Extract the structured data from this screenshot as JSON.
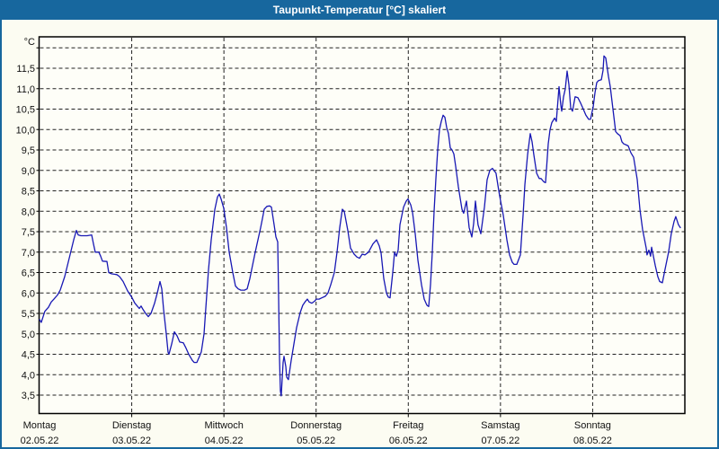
{
  "window": {
    "title": "Taupunkt-Temperatur [°C] skaliert"
  },
  "chart_data": {
    "type": "line",
    "title": "Taupunkt-Temperatur [°C] skaliert",
    "xlabel": "",
    "ylabel": "°C",
    "ylim": [
      3.0,
      12.3
    ],
    "grid": "dashed",
    "legend": "none",
    "line_color": "#1818b4",
    "grid_color": "#222222",
    "axis_color": "#000000",
    "y_tick_values": [
      11.5,
      11.0,
      10.5,
      10.0,
      9.5,
      9.0,
      8.5,
      8.0,
      7.5,
      7.0,
      6.5,
      6.0,
      5.5,
      5.0,
      4.5,
      4.0,
      3.5
    ],
    "y_tick_labels": [
      "11,5",
      "11,0",
      "10,5",
      "10,0",
      "9,5",
      "9,0",
      "8,5",
      "8,0",
      "7,5",
      "7,0",
      "6,5",
      "6,0",
      "5,5",
      "5,0",
      "4,5",
      "4,0",
      "3,5"
    ],
    "y_grid_top_unlabeled": 12.0,
    "days": [
      {
        "name": "Montag",
        "date": "02.05.22"
      },
      {
        "name": "Dienstag",
        "date": "03.05.22"
      },
      {
        "name": "Mittwoch",
        "date": "04.05.22"
      },
      {
        "name": "Donnerstag",
        "date": "05.05.22"
      },
      {
        "name": "Freitag",
        "date": "06.05.22"
      },
      {
        "name": "Samstag",
        "date": "07.05.22"
      },
      {
        "name": "Sonntag",
        "date": "08.05.22"
      }
    ],
    "x_unit": "days_from_monday",
    "series": [
      {
        "name": "Taupunkt",
        "points": [
          [
            0.0,
            5.35
          ],
          [
            0.019,
            5.28
          ],
          [
            0.039,
            5.42
          ],
          [
            0.058,
            5.55
          ],
          [
            0.097,
            5.65
          ],
          [
            0.127,
            5.78
          ],
          [
            0.156,
            5.85
          ],
          [
            0.195,
            5.95
          ],
          [
            0.224,
            6.07
          ],
          [
            0.273,
            6.4
          ],
          [
            0.322,
            6.85
          ],
          [
            0.37,
            7.3
          ],
          [
            0.4,
            7.53
          ],
          [
            0.419,
            7.42
          ],
          [
            0.448,
            7.4
          ],
          [
            0.517,
            7.4
          ],
          [
            0.565,
            7.42
          ],
          [
            0.585,
            7.2
          ],
          [
            0.604,
            7.0
          ],
          [
            0.643,
            7.0
          ],
          [
            0.663,
            6.9
          ],
          [
            0.682,
            6.78
          ],
          [
            0.731,
            6.77
          ],
          [
            0.751,
            6.5
          ],
          [
            0.78,
            6.47
          ],
          [
            0.838,
            6.45
          ],
          [
            0.868,
            6.4
          ],
          [
            0.907,
            6.28
          ],
          [
            0.955,
            6.05
          ],
          [
            0.985,
            5.95
          ],
          [
            1.004,
            5.88
          ],
          [
            1.033,
            5.75
          ],
          [
            1.053,
            5.7
          ],
          [
            1.082,
            5.62
          ],
          [
            1.102,
            5.68
          ],
          [
            1.121,
            5.6
          ],
          [
            1.15,
            5.5
          ],
          [
            1.18,
            5.42
          ],
          [
            1.209,
            5.5
          ],
          [
            1.248,
            5.75
          ],
          [
            1.277,
            6.0
          ],
          [
            1.306,
            6.28
          ],
          [
            1.326,
            6.1
          ],
          [
            1.345,
            5.6
          ],
          [
            1.375,
            5.0
          ],
          [
            1.394,
            4.55
          ],
          [
            1.404,
            4.5
          ],
          [
            1.433,
            4.75
          ],
          [
            1.462,
            5.05
          ],
          [
            1.492,
            4.95
          ],
          [
            1.521,
            4.8
          ],
          [
            1.56,
            4.78
          ],
          [
            1.589,
            4.65
          ],
          [
            1.618,
            4.5
          ],
          [
            1.657,
            4.35
          ],
          [
            1.677,
            4.3
          ],
          [
            1.706,
            4.3
          ],
          [
            1.735,
            4.45
          ],
          [
            1.755,
            4.56
          ],
          [
            1.784,
            5.0
          ],
          [
            1.804,
            5.63
          ],
          [
            1.833,
            6.57
          ],
          [
            1.862,
            7.3
          ],
          [
            1.882,
            7.67
          ],
          [
            1.901,
            8.04
          ],
          [
            1.93,
            8.35
          ],
          [
            1.95,
            8.42
          ],
          [
            1.969,
            8.3
          ],
          [
            1.999,
            8.07
          ],
          [
            2.028,
            7.6
          ],
          [
            2.057,
            7.0
          ],
          [
            2.096,
            6.5
          ],
          [
            2.125,
            6.17
          ],
          [
            2.155,
            6.1
          ],
          [
            2.184,
            6.07
          ],
          [
            2.223,
            6.07
          ],
          [
            2.252,
            6.1
          ],
          [
            2.281,
            6.35
          ],
          [
            2.301,
            6.57
          ],
          [
            2.34,
            7.0
          ],
          [
            2.369,
            7.3
          ],
          [
            2.398,
            7.6
          ],
          [
            2.418,
            7.82
          ],
          [
            2.437,
            8.05
          ],
          [
            2.467,
            8.12
          ],
          [
            2.496,
            8.13
          ],
          [
            2.515,
            8.1
          ],
          [
            2.545,
            7.67
          ],
          [
            2.564,
            7.37
          ],
          [
            2.584,
            7.25
          ],
          [
            2.593,
            5.9
          ],
          [
            2.603,
            4.4
          ],
          [
            2.613,
            3.6
          ],
          [
            2.622,
            3.48
          ],
          [
            2.642,
            4.3
          ],
          [
            2.652,
            4.45
          ],
          [
            2.671,
            4.2
          ],
          [
            2.681,
            3.94
          ],
          [
            2.7,
            3.88
          ],
          [
            2.73,
            4.35
          ],
          [
            2.759,
            4.75
          ],
          [
            2.788,
            5.15
          ],
          [
            2.827,
            5.52
          ],
          [
            2.856,
            5.7
          ],
          [
            2.886,
            5.8
          ],
          [
            2.905,
            5.85
          ],
          [
            2.925,
            5.78
          ],
          [
            2.954,
            5.75
          ],
          [
            2.983,
            5.8
          ],
          [
            3.003,
            5.85
          ],
          [
            3.032,
            5.85
          ],
          [
            3.061,
            5.88
          ],
          [
            3.1,
            5.92
          ],
          [
            3.129,
            6.0
          ],
          [
            3.159,
            6.2
          ],
          [
            3.198,
            6.5
          ],
          [
            3.227,
            7.0
          ],
          [
            3.256,
            7.6
          ],
          [
            3.285,
            8.05
          ],
          [
            3.305,
            8.0
          ],
          [
            3.344,
            7.53
          ],
          [
            3.373,
            7.1
          ],
          [
            3.412,
            6.95
          ],
          [
            3.442,
            6.88
          ],
          [
            3.471,
            6.85
          ],
          [
            3.5,
            6.95
          ],
          [
            3.529,
            6.93
          ],
          [
            3.568,
            7.0
          ],
          [
            3.617,
            7.2
          ],
          [
            3.656,
            7.3
          ],
          [
            3.685,
            7.15
          ],
          [
            3.705,
            6.98
          ],
          [
            3.734,
            6.35
          ],
          [
            3.763,
            6.0
          ],
          [
            3.783,
            5.9
          ],
          [
            3.802,
            5.88
          ],
          [
            3.831,
            6.5
          ],
          [
            3.851,
            7.0
          ],
          [
            3.87,
            6.9
          ],
          [
            3.89,
            7.05
          ],
          [
            3.909,
            7.67
          ],
          [
            3.948,
            8.1
          ],
          [
            3.978,
            8.25
          ],
          [
            3.997,
            8.3
          ],
          [
            4.027,
            8.15
          ],
          [
            4.046,
            7.97
          ],
          [
            4.075,
            7.45
          ],
          [
            4.104,
            6.8
          ],
          [
            4.143,
            6.2
          ],
          [
            4.173,
            5.85
          ],
          [
            4.202,
            5.7
          ],
          [
            4.221,
            5.67
          ],
          [
            4.241,
            6.2
          ],
          [
            4.26,
            7.0
          ],
          [
            4.28,
            8.0
          ],
          [
            4.299,
            8.8
          ],
          [
            4.319,
            9.5
          ],
          [
            4.338,
            10.0
          ],
          [
            4.358,
            10.2
          ],
          [
            4.377,
            10.35
          ],
          [
            4.397,
            10.3
          ],
          [
            4.416,
            10.05
          ],
          [
            4.436,
            9.9
          ],
          [
            4.455,
            9.55
          ],
          [
            4.475,
            9.5
          ],
          [
            4.494,
            9.4
          ],
          [
            4.514,
            9.1
          ],
          [
            4.543,
            8.6
          ],
          [
            4.582,
            8.05
          ],
          [
            4.601,
            7.95
          ],
          [
            4.631,
            8.25
          ],
          [
            4.66,
            7.6
          ],
          [
            4.689,
            7.37
          ],
          [
            4.709,
            7.7
          ],
          [
            4.728,
            8.25
          ],
          [
            4.757,
            7.67
          ],
          [
            4.787,
            7.45
          ],
          [
            4.826,
            8.1
          ],
          [
            4.855,
            8.77
          ],
          [
            4.884,
            9.0
          ],
          [
            4.913,
            9.05
          ],
          [
            4.952,
            8.93
          ],
          [
            4.982,
            8.5
          ],
          [
            5.001,
            8.25
          ],
          [
            5.031,
            7.9
          ],
          [
            5.07,
            7.3
          ],
          [
            5.099,
            6.93
          ],
          [
            5.128,
            6.75
          ],
          [
            5.148,
            6.7
          ],
          [
            5.177,
            6.7
          ],
          [
            5.216,
            6.93
          ],
          [
            5.245,
            7.9
          ],
          [
            5.265,
            8.65
          ],
          [
            5.294,
            9.38
          ],
          [
            5.323,
            9.9
          ],
          [
            5.343,
            9.7
          ],
          [
            5.362,
            9.38
          ],
          [
            5.392,
            8.93
          ],
          [
            5.421,
            8.8
          ],
          [
            5.44,
            8.8
          ],
          [
            5.47,
            8.72
          ],
          [
            5.489,
            8.7
          ],
          [
            5.518,
            9.65
          ],
          [
            5.538,
            10.0
          ],
          [
            5.557,
            10.17
          ],
          [
            5.587,
            10.28
          ],
          [
            5.606,
            10.2
          ],
          [
            5.635,
            11.05
          ],
          [
            5.655,
            10.6
          ],
          [
            5.664,
            10.45
          ],
          [
            5.684,
            10.8
          ],
          [
            5.703,
            11.0
          ],
          [
            5.723,
            11.43
          ],
          [
            5.742,
            11.1
          ],
          [
            5.762,
            10.53
          ],
          [
            5.781,
            10.45
          ],
          [
            5.81,
            10.8
          ],
          [
            5.84,
            10.78
          ],
          [
            5.869,
            10.65
          ],
          [
            5.898,
            10.5
          ],
          [
            5.927,
            10.35
          ],
          [
            5.957,
            10.25
          ],
          [
            5.976,
            10.25
          ],
          [
            6.006,
            10.55
          ],
          [
            6.025,
            10.9
          ],
          [
            6.045,
            11.15
          ],
          [
            6.064,
            11.2
          ],
          [
            6.094,
            11.22
          ],
          [
            6.113,
            11.45
          ],
          [
            6.123,
            11.8
          ],
          [
            6.142,
            11.75
          ],
          [
            6.171,
            11.3
          ],
          [
            6.191,
            11.05
          ],
          [
            6.22,
            10.5
          ],
          [
            6.249,
            9.95
          ],
          [
            6.269,
            9.9
          ],
          [
            6.298,
            9.85
          ],
          [
            6.318,
            9.7
          ],
          [
            6.337,
            9.65
          ],
          [
            6.366,
            9.62
          ],
          [
            6.386,
            9.6
          ],
          [
            6.415,
            9.43
          ],
          [
            6.444,
            9.32
          ],
          [
            6.483,
            8.78
          ],
          [
            6.513,
            8.05
          ],
          [
            6.542,
            7.55
          ],
          [
            6.581,
            7.1
          ],
          [
            6.59,
            6.93
          ],
          [
            6.61,
            7.05
          ],
          [
            6.629,
            6.9
          ],
          [
            6.639,
            7.12
          ],
          [
            6.678,
            6.68
          ],
          [
            6.707,
            6.4
          ],
          [
            6.727,
            6.28
          ],
          [
            6.756,
            6.25
          ],
          [
            6.785,
            6.57
          ],
          [
            6.824,
            7.0
          ],
          [
            6.853,
            7.45
          ],
          [
            6.883,
            7.75
          ],
          [
            6.902,
            7.87
          ],
          [
            6.931,
            7.67
          ],
          [
            6.951,
            7.6
          ]
        ]
      }
    ]
  }
}
